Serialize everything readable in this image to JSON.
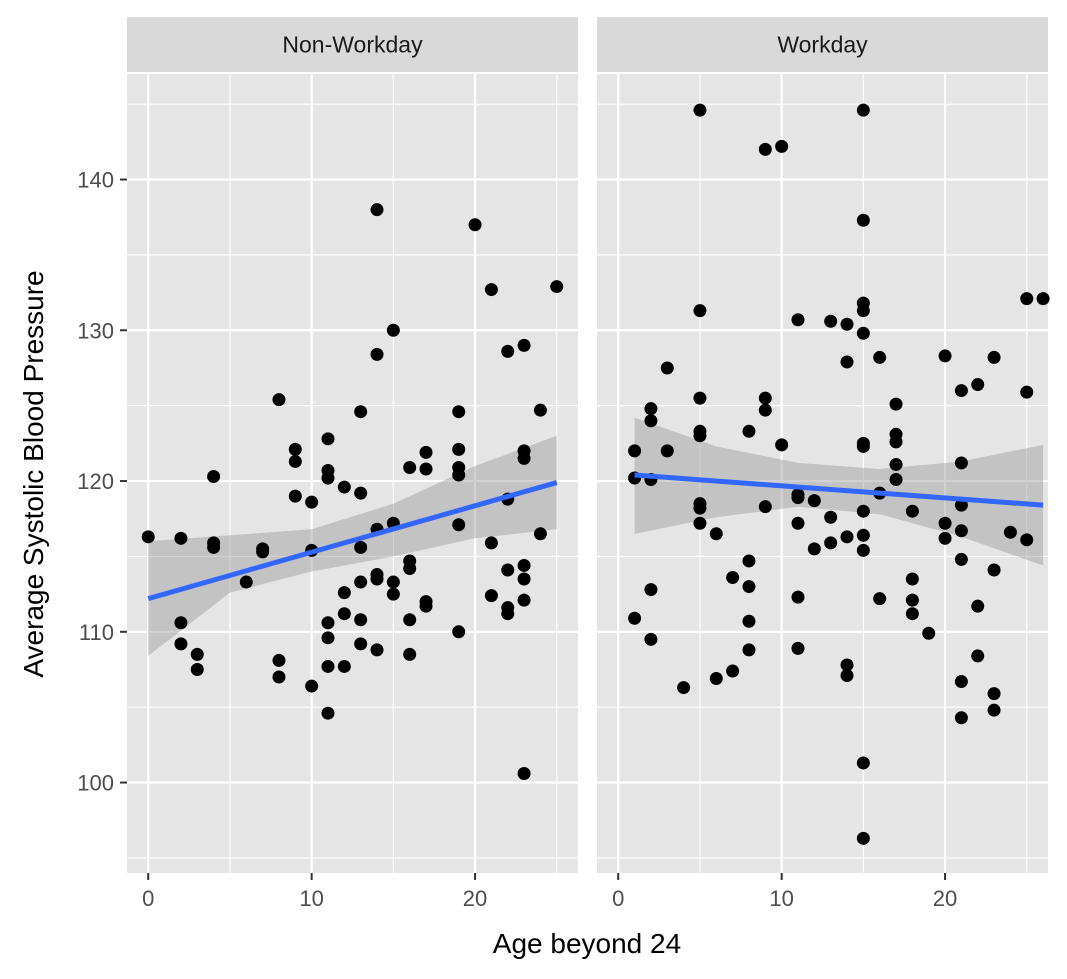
{
  "chart_data": {
    "type": "scatter",
    "facet_layout": "1 row x 2 columns, shared y-axis",
    "xlabel": "Age beyond 24",
    "ylabel": "Average Systolic Blood Pressure",
    "xlim": [
      -1.3,
      26.3
    ],
    "ylim": [
      94,
      147
    ],
    "x_ticks": [
      0,
      10,
      20
    ],
    "y_ticks": [
      100,
      110,
      120,
      130,
      140
    ],
    "grid": true,
    "point_color": "#000000",
    "fit_color": "#3366ff",
    "ribbon_color": "#999999",
    "panel_color": "#e5e5e5",
    "strip_color": "#d9d9d9",
    "panels": [
      {
        "label": "Non-Workday",
        "fit": {
          "x": [
            0,
            25
          ],
          "y": [
            112.2,
            119.9
          ]
        },
        "ribbon": {
          "x": [
            0,
            5,
            10,
            15,
            20,
            25
          ],
          "lower": [
            108.4,
            112.6,
            114.0,
            115.0,
            116.2,
            116.8
          ],
          "upper": [
            116.0,
            116.4,
            116.8,
            118.5,
            121.0,
            123.0
          ]
        },
        "points": [
          [
            0,
            116.3
          ],
          [
            2,
            116.2
          ],
          [
            2,
            110.6
          ],
          [
            2,
            109.2
          ],
          [
            3,
            108.5
          ],
          [
            3,
            107.5
          ],
          [
            4,
            120.3
          ],
          [
            4,
            115.9
          ],
          [
            4,
            115.6
          ],
          [
            6,
            113.3
          ],
          [
            7,
            115.5
          ],
          [
            7,
            115.3
          ],
          [
            8,
            125.4
          ],
          [
            8,
            108.1
          ],
          [
            8,
            107.0
          ],
          [
            9,
            122.1
          ],
          [
            9,
            121.3
          ],
          [
            9,
            119.0
          ],
          [
            10,
            118.6
          ],
          [
            10,
            115.4
          ],
          [
            10,
            106.4
          ],
          [
            11,
            122.8
          ],
          [
            11,
            120.7
          ],
          [
            11,
            120.2
          ],
          [
            11,
            110.6
          ],
          [
            11,
            109.6
          ],
          [
            11,
            107.7
          ],
          [
            11,
            104.6
          ],
          [
            12,
            119.6
          ],
          [
            12,
            112.6
          ],
          [
            12,
            111.2
          ],
          [
            12,
            107.7
          ],
          [
            13,
            124.6
          ],
          [
            13,
            119.2
          ],
          [
            13,
            115.6
          ],
          [
            13,
            113.3
          ],
          [
            13,
            110.8
          ],
          [
            13,
            109.2
          ],
          [
            14,
            138.0
          ],
          [
            14,
            128.4
          ],
          [
            14,
            116.8
          ],
          [
            14,
            113.8
          ],
          [
            14,
            113.5
          ],
          [
            14,
            108.8
          ],
          [
            15,
            130.0
          ],
          [
            15,
            117.2
          ],
          [
            15,
            113.3
          ],
          [
            15,
            112.5
          ],
          [
            16,
            120.9
          ],
          [
            16,
            114.7
          ],
          [
            16,
            114.2
          ],
          [
            16,
            110.8
          ],
          [
            16,
            108.5
          ],
          [
            17,
            121.9
          ],
          [
            17,
            120.8
          ],
          [
            17,
            112.0
          ],
          [
            17,
            111.7
          ],
          [
            19,
            124.6
          ],
          [
            19,
            122.1
          ],
          [
            19,
            120.9
          ],
          [
            19,
            120.4
          ],
          [
            19,
            117.1
          ],
          [
            19,
            110.0
          ],
          [
            20,
            137.0
          ],
          [
            21,
            132.7
          ],
          [
            21,
            115.9
          ],
          [
            21,
            112.4
          ],
          [
            22,
            128.6
          ],
          [
            22,
            118.8
          ],
          [
            22,
            114.1
          ],
          [
            22,
            111.6
          ],
          [
            22,
            111.2
          ],
          [
            23,
            129.0
          ],
          [
            23,
            122.0
          ],
          [
            23,
            121.5
          ],
          [
            23,
            114.4
          ],
          [
            23,
            113.5
          ],
          [
            23,
            112.1
          ],
          [
            23,
            100.6
          ],
          [
            24,
            124.7
          ],
          [
            24,
            116.5
          ],
          [
            25,
            132.9
          ]
        ]
      },
      {
        "label": "Workday",
        "fit": {
          "x": [
            1,
            26
          ],
          "y": [
            120.4,
            118.4
          ]
        },
        "ribbon": {
          "x": [
            1,
            6,
            11,
            16,
            21,
            26
          ],
          "lower": [
            116.5,
            117.6,
            118.3,
            117.8,
            116.3,
            114.4
          ],
          "upper": [
            124.2,
            122.3,
            121.2,
            120.8,
            121.3,
            122.4
          ]
        },
        "points": [
          [
            1,
            122.0
          ],
          [
            1,
            120.2
          ],
          [
            1,
            110.9
          ],
          [
            2,
            124.8
          ],
          [
            2,
            124.0
          ],
          [
            2,
            120.1
          ],
          [
            2,
            112.8
          ],
          [
            2,
            109.5
          ],
          [
            3,
            127.5
          ],
          [
            3,
            122.0
          ],
          [
            4,
            106.3
          ],
          [
            5,
            144.6
          ],
          [
            5,
            131.3
          ],
          [
            5,
            125.5
          ],
          [
            5,
            123.3
          ],
          [
            5,
            123.0
          ],
          [
            5,
            118.5
          ],
          [
            5,
            118.2
          ],
          [
            5,
            117.2
          ],
          [
            6,
            116.5
          ],
          [
            6,
            106.9
          ],
          [
            7,
            113.6
          ],
          [
            7,
            107.4
          ],
          [
            8,
            123.3
          ],
          [
            8,
            114.7
          ],
          [
            8,
            113.0
          ],
          [
            8,
            110.7
          ],
          [
            8,
            108.8
          ],
          [
            9,
            142.0
          ],
          [
            9,
            125.5
          ],
          [
            9,
            124.7
          ],
          [
            9,
            118.3
          ],
          [
            10,
            142.2
          ],
          [
            10,
            122.4
          ],
          [
            11,
            130.7
          ],
          [
            11,
            119.1
          ],
          [
            11,
            118.9
          ],
          [
            11,
            117.2
          ],
          [
            11,
            112.3
          ],
          [
            11,
            108.9
          ],
          [
            12,
            118.7
          ],
          [
            12,
            115.5
          ],
          [
            13,
            130.6
          ],
          [
            13,
            117.6
          ],
          [
            13,
            115.9
          ],
          [
            14,
            130.4
          ],
          [
            14,
            127.9
          ],
          [
            14,
            116.3
          ],
          [
            14,
            107.8
          ],
          [
            14,
            107.1
          ],
          [
            15,
            144.6
          ],
          [
            15,
            137.3
          ],
          [
            15,
            131.8
          ],
          [
            15,
            131.3
          ],
          [
            15,
            129.8
          ],
          [
            15,
            122.5
          ],
          [
            15,
            122.3
          ],
          [
            15,
            118.0
          ],
          [
            15,
            116.4
          ],
          [
            15,
            115.4
          ],
          [
            15,
            101.3
          ],
          [
            15,
            96.3
          ],
          [
            16,
            128.2
          ],
          [
            16,
            119.2
          ],
          [
            16,
            112.2
          ],
          [
            17,
            125.1
          ],
          [
            17,
            123.1
          ],
          [
            17,
            122.6
          ],
          [
            17,
            121.1
          ],
          [
            17,
            120.1
          ],
          [
            18,
            118.0
          ],
          [
            18,
            113.5
          ],
          [
            18,
            112.1
          ],
          [
            18,
            111.2
          ],
          [
            19,
            109.9
          ],
          [
            20,
            128.3
          ],
          [
            20,
            117.2
          ],
          [
            20,
            116.2
          ],
          [
            21,
            126.0
          ],
          [
            21,
            121.2
          ],
          [
            21,
            118.4
          ],
          [
            21,
            116.7
          ],
          [
            21,
            114.8
          ],
          [
            21,
            106.7
          ],
          [
            21,
            104.3
          ],
          [
            22,
            126.4
          ],
          [
            22,
            111.7
          ],
          [
            22,
            108.4
          ],
          [
            23,
            128.2
          ],
          [
            23,
            114.1
          ],
          [
            23,
            105.9
          ],
          [
            23,
            104.8
          ],
          [
            24,
            116.6
          ],
          [
            25,
            132.1
          ],
          [
            25,
            125.9
          ],
          [
            25,
            116.1
          ],
          [
            26,
            132.1
          ]
        ]
      }
    ]
  }
}
